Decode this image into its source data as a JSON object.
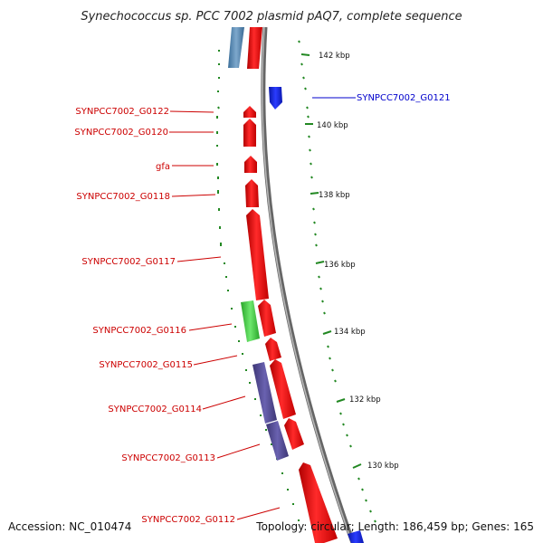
{
  "title": "Synechococcus sp. PCC 7002 plasmid pAQ7, complete sequence",
  "accession": "Accession: NC_010474",
  "summary": "Topology: circular; Length: 186,459 bp; Genes: 165",
  "ticks": [
    "142 kbp",
    "140 kbp",
    "138 kbp",
    "136 kbp",
    "134 kbp",
    "132 kbp",
    "130 kbp"
  ],
  "genes_left": [
    "SYNPCC7002_G0122",
    "SYNPCC7002_G0120",
    "gfa",
    "SYNPCC7002_G0118",
    "SYNPCC7002_G0117",
    "SYNPCC7002_G0116",
    "SYNPCC7002_G0115",
    "SYNPCC7002_G0114",
    "SYNPCC7002_G0113",
    "SYNPCC7002_G0112"
  ],
  "genes_right": [
    "SYNPCC7002_G0121"
  ],
  "colors": {
    "forward_cds": "#ee1111",
    "reverse_cds": "#1122dd",
    "rna": "#44cc44",
    "misc": "#554c99",
    "backbone": "#888888",
    "tick_mark": "#228822",
    "label_red": "#cc0000",
    "label_blue": "#0000cc"
  }
}
